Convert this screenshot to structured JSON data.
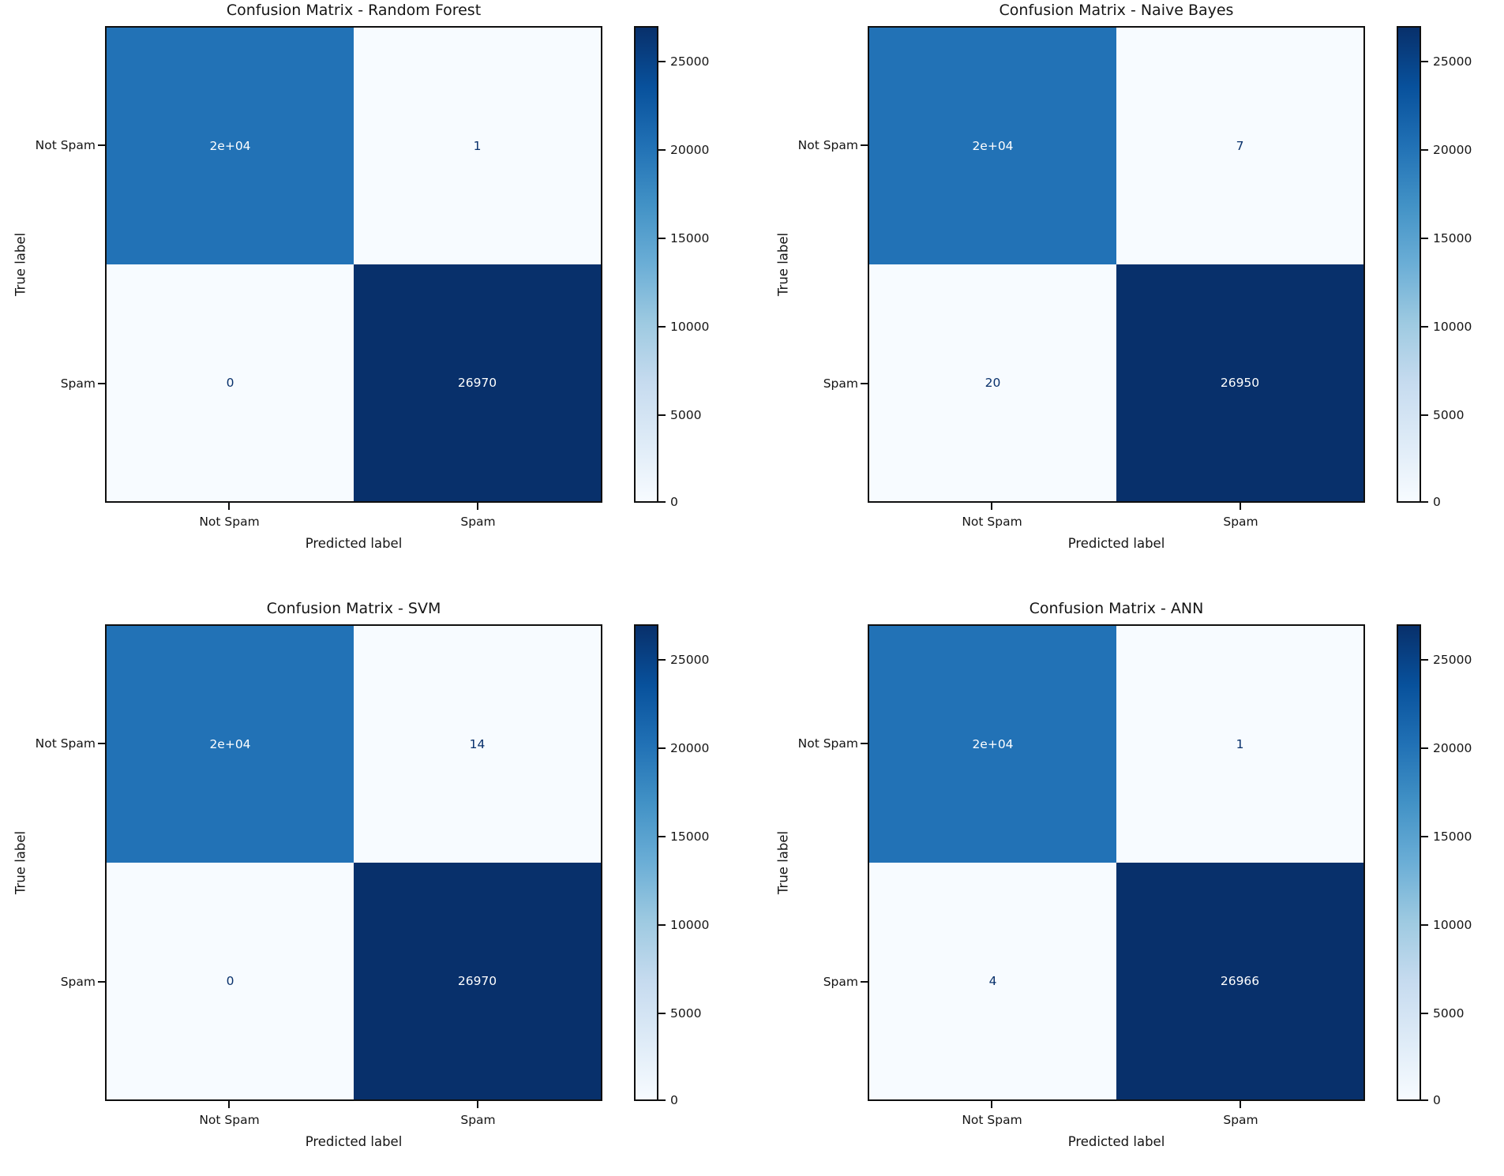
{
  "figure": {
    "background": "#ffffff"
  },
  "colors": {
    "cell_mid_blue": "#2272b6",
    "cell_light": "#f7fbff",
    "cell_dark_navy": "#08306b",
    "text": "#151515",
    "value_text_on_dark": "#ffffff",
    "value_text_on_light": "#08306b",
    "colormap": "Blues"
  },
  "chart_data": [
    {
      "type": "heatmap",
      "title": "Confusion Matrix - Random Forest",
      "xlabel": "Predicted label",
      "ylabel": "True label",
      "x_tick_labels": [
        "Not Spam",
        "Spam"
      ],
      "y_tick_labels": [
        "Not Spam",
        "Spam"
      ],
      "values": [
        [
          20000,
          1
        ],
        [
          0,
          26970
        ]
      ],
      "cell_labels": [
        [
          "2e+04",
          "1"
        ],
        [
          "0",
          "26970"
        ]
      ],
      "vmin": 0,
      "vmax": 26970,
      "colorbar_tick_labels": [
        "25000",
        "20000",
        "15000",
        "10000",
        "5000",
        "0"
      ]
    },
    {
      "type": "heatmap",
      "title": "Confusion Matrix - Naive Bayes",
      "xlabel": "Predicted label",
      "ylabel": "True label",
      "x_tick_labels": [
        "Not Spam",
        "Spam"
      ],
      "y_tick_labels": [
        "Not Spam",
        "Spam"
      ],
      "values": [
        [
          20000,
          7
        ],
        [
          20,
          26950
        ]
      ],
      "cell_labels": [
        [
          "2e+04",
          "7"
        ],
        [
          "20",
          "26950"
        ]
      ],
      "vmin": 0,
      "vmax": 26950,
      "colorbar_tick_labels": [
        "25000",
        "20000",
        "15000",
        "10000",
        "5000",
        "0"
      ]
    },
    {
      "type": "heatmap",
      "title": "Confusion Matrix - SVM",
      "xlabel": "Predicted label",
      "ylabel": "True label",
      "x_tick_labels": [
        "Not Spam",
        "Spam"
      ],
      "y_tick_labels": [
        "Not Spam",
        "Spam"
      ],
      "values": [
        [
          20000,
          14
        ],
        [
          0,
          26970
        ]
      ],
      "cell_labels": [
        [
          "2e+04",
          "14"
        ],
        [
          "0",
          "26970"
        ]
      ],
      "vmin": 0,
      "vmax": 26970,
      "colorbar_tick_labels": [
        "25000",
        "20000",
        "15000",
        "10000",
        "5000",
        "0"
      ]
    },
    {
      "type": "heatmap",
      "title": "Confusion Matrix - ANN",
      "xlabel": "Predicted label",
      "ylabel": "True label",
      "x_tick_labels": [
        "Not Spam",
        "Spam"
      ],
      "y_tick_labels": [
        "Not Spam",
        "Spam"
      ],
      "values": [
        [
          20000,
          1
        ],
        [
          4,
          26966
        ]
      ],
      "cell_labels": [
        [
          "2e+04",
          "1"
        ],
        [
          "4",
          "26966"
        ]
      ],
      "vmin": 0,
      "vmax": 26966,
      "colorbar_tick_labels": [
        "25000",
        "20000",
        "15000",
        "10000",
        "5000",
        "0"
      ]
    }
  ]
}
